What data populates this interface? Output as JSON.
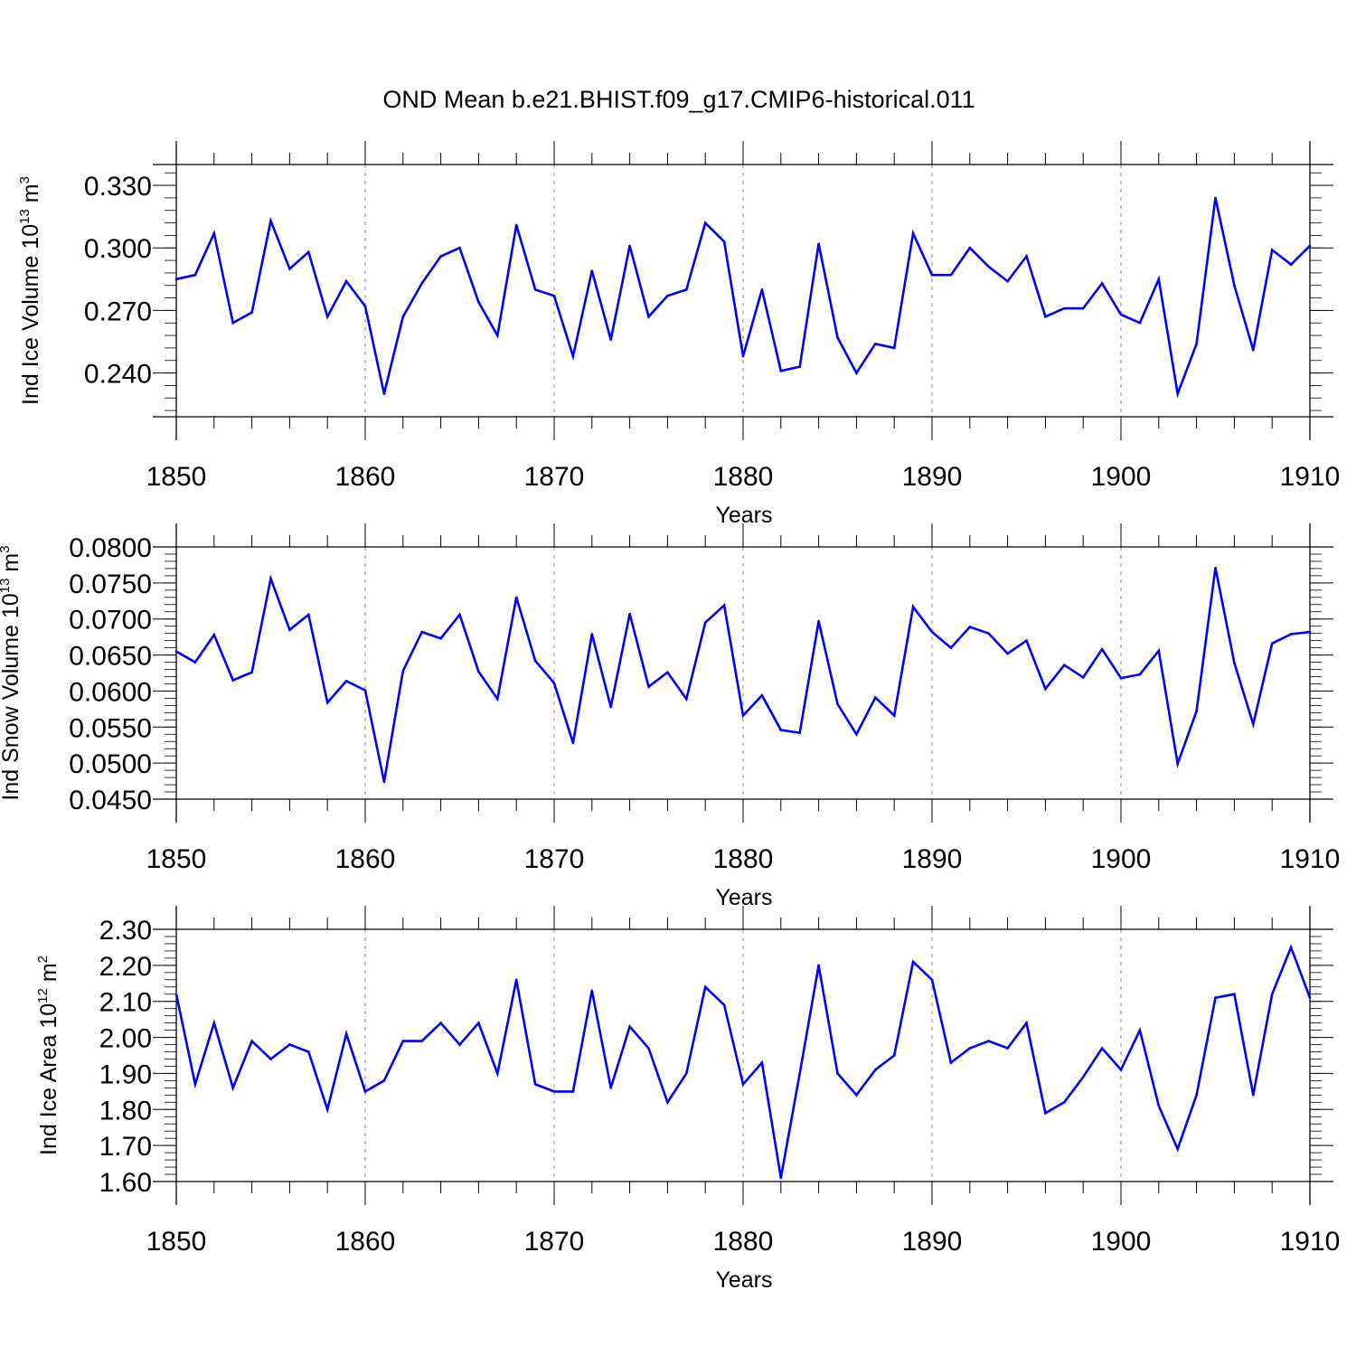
{
  "figure_title": "OND Mean b.e21.BHIST.f09_g17.CMIP6-historical.011",
  "colors": {
    "series": "#0000ff",
    "axis": "#000000",
    "grid": "#888888"
  },
  "chart_data": [
    {
      "type": "line",
      "title": "OND Mean b.e21.BHIST.f09_g17.CMIP6-historical.011",
      "xlabel": "Years",
      "ylabel": {
        "main": "Ind Ice Volume 10",
        "sup": "13",
        "unit": " m",
        "unit_sup": "3"
      },
      "xlim": [
        1850,
        1910
      ],
      "ylim": [
        0.219,
        0.34
      ],
      "xticks": [
        1850,
        1860,
        1870,
        1880,
        1890,
        1900,
        1910
      ],
      "xtick_labels": [
        "1850",
        "1860",
        "1870",
        "1880",
        "1890",
        "1900",
        "1910"
      ],
      "yticks": [
        0.24,
        0.27,
        0.3,
        0.33
      ],
      "ytick_labels": [
        "0.240",
        "0.270",
        "0.300",
        "0.330"
      ],
      "yminor_step": 0.006,
      "vgrid": [
        1860,
        1870,
        1880,
        1890,
        1900
      ],
      "x_start": 1850,
      "values": [
        0.285,
        0.287,
        0.307,
        0.264,
        0.269,
        0.313,
        0.29,
        0.298,
        0.267,
        0.284,
        0.272,
        0.23,
        0.267,
        0.283,
        0.296,
        0.3,
        0.274,
        0.258,
        0.311,
        0.28,
        0.277,
        0.248,
        0.289,
        0.256,
        0.301,
        0.267,
        0.277,
        0.28,
        0.312,
        0.303,
        0.248,
        0.28,
        0.241,
        0.243,
        0.302,
        0.257,
        0.24,
        0.254,
        0.252,
        0.307,
        0.287,
        0.287,
        0.3,
        0.291,
        0.284,
        0.296,
        0.267,
        0.271,
        0.271,
        0.283,
        0.268,
        0.264,
        0.285,
        0.23,
        0.254,
        0.324,
        0.282,
        0.251,
        0.299,
        0.292,
        0.301
      ]
    },
    {
      "type": "line",
      "title": "",
      "xlabel": "Years",
      "ylabel": {
        "main": "Ind Snow Volume 10",
        "sup": "13",
        "unit": " m",
        "unit_sup": "3"
      },
      "xlim": [
        1850,
        1910
      ],
      "ylim": [
        0.045,
        0.08
      ],
      "xticks": [
        1850,
        1860,
        1870,
        1880,
        1890,
        1900,
        1910
      ],
      "xtick_labels": [
        "1850",
        "1860",
        "1870",
        "1880",
        "1890",
        "1900",
        "1910"
      ],
      "yticks": [
        0.045,
        0.05,
        0.055,
        0.06,
        0.065,
        0.07,
        0.075,
        0.08
      ],
      "ytick_labels": [
        "0.0450",
        "0.0500",
        "0.0550",
        "0.0600",
        "0.0650",
        "0.0700",
        "0.0750",
        "0.0800"
      ],
      "yminor_step": 0.001,
      "vgrid": [
        1860,
        1870,
        1880,
        1890,
        1900
      ],
      "x_start": 1850,
      "values": [
        0.0655,
        0.064,
        0.0678,
        0.0615,
        0.0626,
        0.0756,
        0.0685,
        0.0706,
        0.0584,
        0.0614,
        0.0601,
        0.0474,
        0.0628,
        0.0682,
        0.0673,
        0.0706,
        0.0627,
        0.0589,
        0.073,
        0.0642,
        0.0611,
        0.0528,
        0.0679,
        0.0578,
        0.0707,
        0.0606,
        0.0626,
        0.0589,
        0.0695,
        0.0719,
        0.0566,
        0.0594,
        0.0546,
        0.0542,
        0.0697,
        0.0582,
        0.054,
        0.0591,
        0.0566,
        0.0717,
        0.0682,
        0.066,
        0.0689,
        0.068,
        0.0652,
        0.067,
        0.0603,
        0.0636,
        0.0619,
        0.0658,
        0.0618,
        0.0623,
        0.0656,
        0.0499,
        0.0572,
        0.0771,
        0.0639,
        0.0554,
        0.0666,
        0.0679,
        0.0682
      ]
    },
    {
      "type": "line",
      "title": "",
      "xlabel": "Years",
      "ylabel": {
        "main": "Ind Ice Area 10",
        "sup": "12",
        "unit": " m",
        "unit_sup": "2"
      },
      "xlim": [
        1850,
        1910
      ],
      "ylim": [
        1.6,
        2.3
      ],
      "xticks": [
        1850,
        1860,
        1870,
        1880,
        1890,
        1900,
        1910
      ],
      "xtick_labels": [
        "1850",
        "1860",
        "1870",
        "1880",
        "1890",
        "1900",
        "1910"
      ],
      "yticks": [
        1.6,
        1.7,
        1.8,
        1.9,
        2.0,
        2.1,
        2.2,
        2.3
      ],
      "ytick_labels": [
        "1.60",
        "1.70",
        "1.80",
        "1.90",
        "2.00",
        "2.10",
        "2.20",
        "2.30"
      ],
      "yminor_step": 0.02,
      "vgrid": [
        1860,
        1870,
        1880,
        1890,
        1900
      ],
      "x_start": 1850,
      "values": [
        2.12,
        1.87,
        2.04,
        1.86,
        1.99,
        1.94,
        1.98,
        1.96,
        1.8,
        2.01,
        1.85,
        1.88,
        1.99,
        1.99,
        2.04,
        1.98,
        2.04,
        1.9,
        2.16,
        1.87,
        1.85,
        1.85,
        2.13,
        1.86,
        2.03,
        1.97,
        1.82,
        1.9,
        2.14,
        2.09,
        1.87,
        1.93,
        1.61,
        1.9,
        2.2,
        1.9,
        1.84,
        1.91,
        1.95,
        2.21,
        2.16,
        1.93,
        1.97,
        1.99,
        1.97,
        2.04,
        1.79,
        1.82,
        1.89,
        1.97,
        1.91,
        2.02,
        1.81,
        1.69,
        1.84,
        2.11,
        2.12,
        1.84,
        2.12,
        2.25,
        2.11
      ]
    }
  ]
}
